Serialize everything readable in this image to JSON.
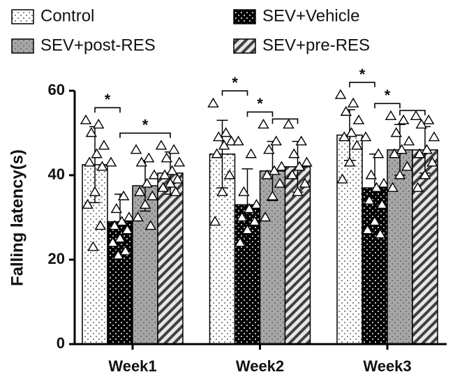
{
  "chart_data": {
    "type": "bar",
    "ylabel": "Falling latency(s)",
    "categories": [
      "Week1",
      "Week2",
      "Week3"
    ],
    "ylim": [
      0,
      60
    ],
    "yticks": [
      0,
      20,
      40,
      60
    ],
    "series": [
      {
        "name": "Control",
        "color": "#ffffff",
        "pattern": "dots-dark",
        "values": [
          42.5,
          45,
          49.5
        ],
        "errors": [
          9,
          8,
          6
        ],
        "points": [
          [
            53,
            52,
            50,
            47,
            45,
            43,
            42,
            36,
            33,
            28,
            23
          ],
          [
            57,
            50,
            49,
            48,
            47,
            45,
            40,
            36,
            29
          ],
          [
            59,
            57,
            55,
            53,
            50,
            49,
            47,
            43,
            39
          ]
        ]
      },
      {
        "name": "SEV+Vehicle",
        "color": "#000000",
        "pattern": "dots-light",
        "values": [
          29,
          33,
          37
        ],
        "errors": [
          6.5,
          8.5,
          8
        ],
        "points": [
          [
            43,
            35,
            32,
            30,
            29,
            28,
            27,
            25,
            24,
            22,
            21
          ],
          [
            48,
            45,
            36,
            33,
            32,
            30,
            29,
            27,
            24
          ],
          [
            49,
            45,
            40,
            38,
            37,
            34,
            33,
            29,
            27,
            26
          ]
        ]
      },
      {
        "name": "SEV+post-RES",
        "color": "#a6a6a6",
        "pattern": "dots-gray",
        "values": [
          37.5,
          41,
          46
        ],
        "errors": [
          6,
          7,
          6
        ],
        "points": [
          [
            46,
            44,
            43,
            40,
            38,
            36,
            35,
            33,
            30,
            28
          ],
          [
            52,
            48,
            46,
            42,
            41,
            40,
            38,
            35,
            30
          ],
          [
            54,
            53,
            50,
            48,
            46,
            45,
            42,
            40,
            37
          ]
        ]
      },
      {
        "name": "SEV+pre-RES",
        "color": "#404040",
        "pattern": "stripes",
        "values": [
          40.5,
          42,
          46
        ],
        "errors": [
          5,
          6,
          5.5
        ],
        "points": [
          [
            47,
            46,
            44,
            43,
            41,
            40,
            39,
            38,
            37,
            36
          ],
          [
            52,
            48,
            45,
            43,
            42,
            40,
            38,
            36
          ],
          [
            54,
            53,
            52,
            49,
            46,
            45,
            43,
            40,
            37
          ]
        ]
      }
    ],
    "significance": [
      {
        "group": 0,
        "from": 0,
        "to": 1,
        "label": "*"
      },
      {
        "group": 0,
        "from": 1,
        "to": 3,
        "label": "*"
      },
      {
        "group": 1,
        "from": 0,
        "to": 1,
        "label": "*"
      },
      {
        "group": 1,
        "from": 1,
        "to": 2,
        "label": "*"
      },
      {
        "group": 1,
        "from": 2,
        "to": 3
      },
      {
        "group": 2,
        "from": 0,
        "to": 1,
        "label": "*"
      },
      {
        "group": 2,
        "from": 1,
        "to": 2,
        "label": "*"
      },
      {
        "group": 2,
        "from": 2,
        "to": 3
      }
    ]
  }
}
